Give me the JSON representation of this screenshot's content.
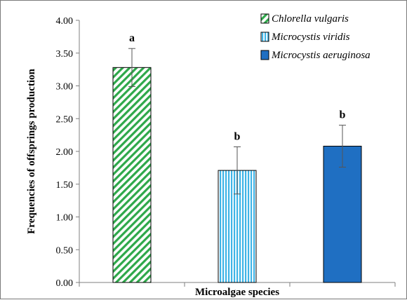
{
  "chart_data": {
    "type": "bar",
    "xlabel": "Microalgae species",
    "ylabel": "Frequencies of offsprings production",
    "ylim": [
      0,
      4
    ],
    "yticks": [
      "0.00",
      "0.50",
      "1.00",
      "1.50",
      "2.00",
      "2.50",
      "3.00",
      "3.50",
      "4.00"
    ],
    "grid": false,
    "legend_position": "top-right",
    "series": [
      {
        "name": "Chlorella vulgaris",
        "value": 3.28,
        "error": 0.29,
        "label": "a",
        "color": "#2ea84a",
        "pattern": "diagonal-stripes"
      },
      {
        "name": "Microcystis viridis",
        "value": 1.71,
        "error": 0.36,
        "label": "b",
        "color": "#3fb4e6",
        "pattern": "vertical-stripes"
      },
      {
        "name": "Microcystis aeruginosa",
        "value": 2.08,
        "error": 0.32,
        "label": "b",
        "color": "#1f6fc2",
        "pattern": "solid"
      }
    ]
  }
}
